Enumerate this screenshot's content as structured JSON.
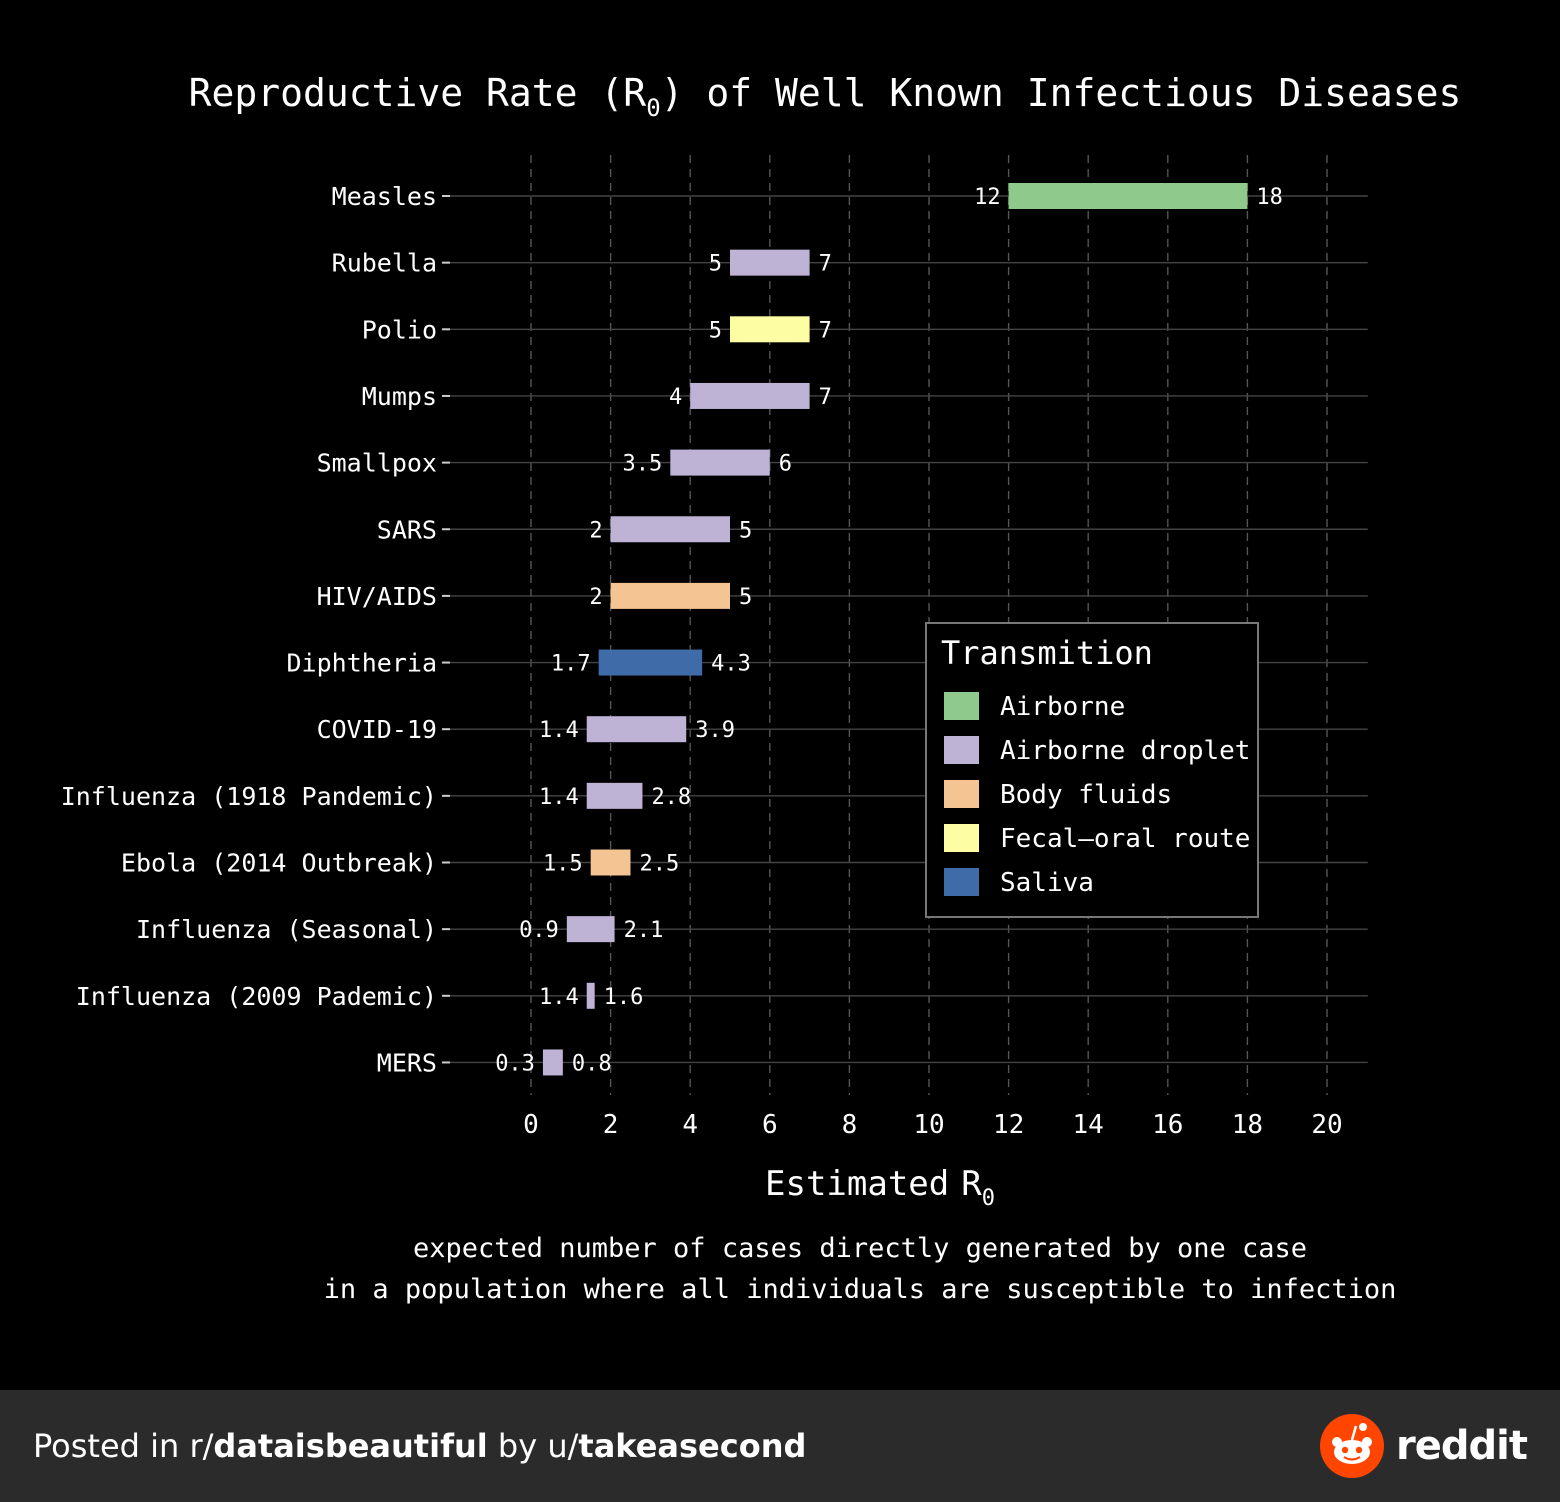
{
  "chart_data": {
    "type": "bar",
    "title": "Reproductive Rate (R0) of Well Known Infectious Diseases",
    "title_parts": {
      "prefix": "Reproductive Rate (",
      "symbol": "R",
      "subscript": "0",
      "suffix": ") of Well Known Infectious Diseases"
    },
    "xlabel": "Estimated R0",
    "xlabel_parts": {
      "text": "Estimated",
      "symbol": "R",
      "subscript": "0"
    },
    "subtitle_lines": [
      "expected number of cases directly generated by one case",
      "in a population where all individuals are susceptible to infection"
    ],
    "xlim": [
      -2,
      21
    ],
    "xticks": [
      0,
      2,
      4,
      6,
      8,
      10,
      12,
      14,
      16,
      18,
      20
    ],
    "grid": true,
    "legend": {
      "title": "Transmition",
      "placement": "right"
    },
    "transmission_colors": {
      "Airborne": "#8fc98b",
      "Airborne droplet": "#beb3d4",
      "Body fluids": "#f5c493",
      "Fecal-oral route": "#fdfda3",
      "Saliva": "#3f6ba9"
    },
    "legend_entries": [
      "Airborne",
      "Airborne droplet",
      "Body fluids",
      "Fecal–oral route",
      "Saliva"
    ],
    "diseases": [
      {
        "name": "Measles",
        "low": 12,
        "high": 18,
        "low_label": "12",
        "high_label": "18",
        "transmission": "Airborne"
      },
      {
        "name": "Rubella",
        "low": 5,
        "high": 7,
        "low_label": "5",
        "high_label": "7",
        "transmission": "Airborne droplet"
      },
      {
        "name": "Polio",
        "low": 5,
        "high": 7,
        "low_label": "5",
        "high_label": "7",
        "transmission": "Fecal-oral route"
      },
      {
        "name": "Mumps",
        "low": 4,
        "high": 7,
        "low_label": "4",
        "high_label": "7",
        "transmission": "Airborne droplet"
      },
      {
        "name": "Smallpox",
        "low": 3.5,
        "high": 6,
        "low_label": "3.5",
        "high_label": "6",
        "transmission": "Airborne droplet"
      },
      {
        "name": "SARS",
        "low": 2,
        "high": 5,
        "low_label": "2",
        "high_label": "5",
        "transmission": "Airborne droplet"
      },
      {
        "name": "HIV/AIDS",
        "low": 2,
        "high": 5,
        "low_label": "2",
        "high_label": "5",
        "transmission": "Body fluids"
      },
      {
        "name": "Diphtheria",
        "low": 1.7,
        "high": 4.3,
        "low_label": "1.7",
        "high_label": "4.3",
        "transmission": "Saliva"
      },
      {
        "name": "COVID-19",
        "low": 1.4,
        "high": 3.9,
        "low_label": "1.4",
        "high_label": "3.9",
        "transmission": "Airborne droplet"
      },
      {
        "name": "Influenza (1918 Pandemic)",
        "low": 1.4,
        "high": 2.8,
        "low_label": "1.4",
        "high_label": "2.8",
        "transmission": "Airborne droplet"
      },
      {
        "name": "Ebola (2014 Outbreak)",
        "low": 1.5,
        "high": 2.5,
        "low_label": "1.5",
        "high_label": "2.5",
        "transmission": "Body fluids"
      },
      {
        "name": "Influenza (Seasonal)",
        "low": 0.9,
        "high": 2.1,
        "low_label": "0.9",
        "high_label": "2.1",
        "transmission": "Airborne droplet"
      },
      {
        "name": "Influenza (2009 Pademic)",
        "low": 1.4,
        "high": 1.6,
        "low_label": "1.4",
        "high_label": "1.6",
        "transmission": "Airborne droplet"
      },
      {
        "name": "MERS",
        "low": 0.3,
        "high": 0.8,
        "low_label": "0.3",
        "high_label": "0.8",
        "transmission": "Airborne droplet"
      }
    ]
  },
  "footer": {
    "prefix": "Posted in r/",
    "subreddit": "dataisbeautiful",
    "middle": " by u/",
    "user": "takeasecond",
    "brand": "reddit",
    "brand_color": "#ff4500"
  }
}
